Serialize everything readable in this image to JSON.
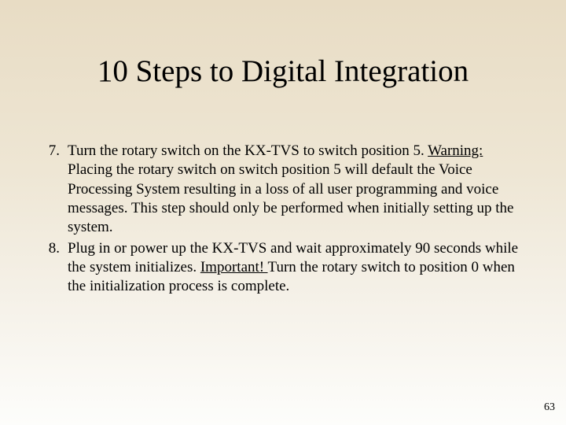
{
  "slide": {
    "title": "10 Steps to Digital Integration",
    "page_number": "63",
    "background_gradient": [
      "#e8dcc4",
      "#eee6d4",
      "#f5f1e8",
      "#fdfdfb"
    ],
    "title_fontsize": 39,
    "body_fontsize": 19,
    "font_family": "Times New Roman",
    "text_color": "#000000"
  },
  "items": [
    {
      "num": "7.",
      "lead": "Turn the rotary switch on the KX-TVS to switch position 5. ",
      "emph": "Warning:",
      "rest": " Placing the rotary switch on switch position 5 will default the Voice Processing System resulting in a loss of all user programming and voice messages. This step should only be performed when initially setting up the system."
    },
    {
      "num": "8.",
      "lead": "Plug in or power up the KX-TVS and wait approximately 90 seconds while the system initializes. ",
      "emph": "Important! ",
      "rest": "Turn the rotary switch to position 0 when the initialization process is complete."
    }
  ]
}
